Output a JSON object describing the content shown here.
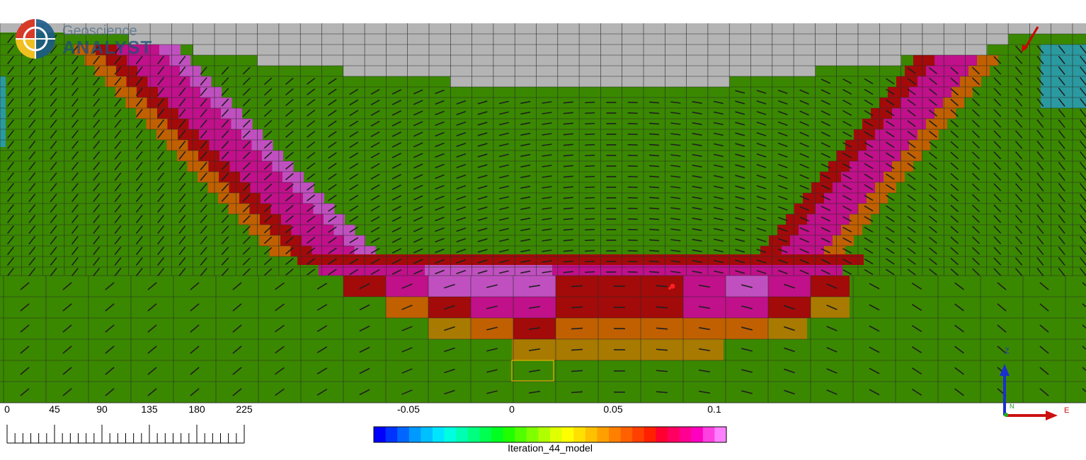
{
  "app": {
    "logo_line1": "Geoscience",
    "logo_line2": "ANALYST"
  },
  "scale_bar": {
    "labels": [
      "0",
      "45",
      "90",
      "135",
      "180",
      "225"
    ]
  },
  "colorbar": {
    "tick_labels": [
      "-0.05",
      "0",
      "0.05",
      "0.1"
    ],
    "title": "Iteration_44_model",
    "colors": [
      "#0000ff",
      "#0033ff",
      "#0066ff",
      "#0099ff",
      "#00bfff",
      "#00e5ff",
      "#00ffe0",
      "#00ffb0",
      "#00ff80",
      "#00ff50",
      "#00ff20",
      "#20ff00",
      "#50ff00",
      "#80ff00",
      "#b0ff00",
      "#e0ff00",
      "#ffff00",
      "#ffe000",
      "#ffc000",
      "#ffa000",
      "#ff8000",
      "#ff6000",
      "#ff4000",
      "#ff2000",
      "#ff0030",
      "#ff0060",
      "#ff0090",
      "#ff00c0",
      "#ff40e0",
      "#ff80ff"
    ]
  },
  "orientation": {
    "z_label": "Z",
    "e_label": "E",
    "n_label": "N"
  },
  "model_colors": {
    "background": "#3a8800",
    "air": "#b4b4b4",
    "brown": "#c06000",
    "darkred": "#a30a0a",
    "magenta": "#c0108a",
    "pink": "#c050c0",
    "teal": "#2a9aa0",
    "gold": "#a87a00"
  }
}
